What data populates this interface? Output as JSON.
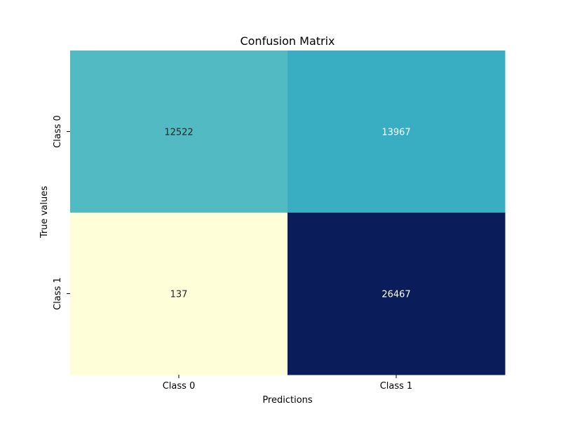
{
  "chart_data": {
    "type": "heatmap",
    "title": "Confusion Matrix",
    "xlabel": "Predictions",
    "ylabel": "True values",
    "x_categories": [
      "Class 0",
      "Class 1"
    ],
    "y_categories": [
      "Class 0",
      "Class 1"
    ],
    "values": [
      [
        12522,
        13967
      ],
      [
        137,
        26467
      ]
    ],
    "colormap": "YlGnBu",
    "colorbar": false,
    "cell_colors": [
      [
        "#52BAC2",
        "#39AEC3"
      ],
      [
        "#FEFFD9",
        "#0A1D5A"
      ]
    ],
    "annotation_colors": [
      [
        "#262626",
        "#ffffff"
      ],
      [
        "#262626",
        "#ffffff"
      ]
    ]
  }
}
